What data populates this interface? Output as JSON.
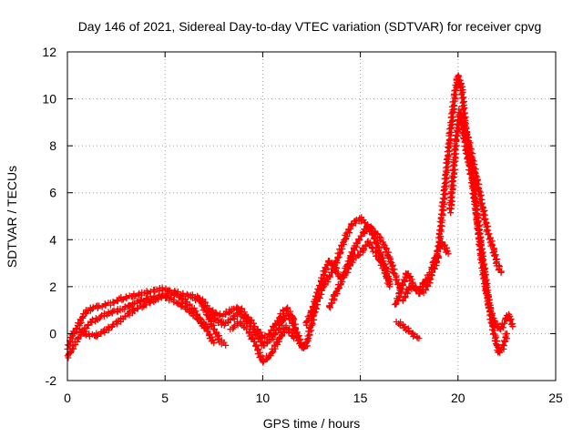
{
  "chart_data": {
    "type": "scatter",
    "title": "Day 146 of 2021, Sidereal Day-to-day VTEC variation (SDTVAR) for receiver cpvg",
    "xlabel": "GPS time / hours",
    "ylabel": "SDTVAR / TECUs",
    "xlim": [
      0,
      25
    ],
    "ylim": [
      -2,
      12
    ],
    "xticks": [
      "0",
      "5",
      "10",
      "15",
      "20",
      "25"
    ],
    "yticks": [
      "-2",
      "0",
      "2",
      "4",
      "6",
      "8",
      "10",
      "12"
    ],
    "grid": true,
    "marker": "+",
    "series": [
      {
        "name": "SDTVAR",
        "color": "#ff0000",
        "tracks": [
          {
            "x": [
              0.0,
              0.3,
              0.6,
              0.9,
              1.3,
              1.8,
              2.3,
              2.8,
              3.3,
              3.8,
              4.3,
              4.8,
              5.3,
              5.8,
              6.3,
              6.8,
              7.1,
              7.4,
              7.8,
              8.1
            ],
            "y": [
              -0.6,
              0.0,
              0.4,
              0.9,
              1.1,
              1.2,
              1.3,
              1.5,
              1.6,
              1.7,
              1.8,
              1.9,
              1.8,
              1.7,
              1.6,
              1.4,
              0.9,
              0.4,
              -0.3,
              -0.5
            ]
          },
          {
            "x": [
              0.0,
              0.4,
              0.8,
              1.2,
              1.7,
              2.2,
              2.7,
              3.2,
              3.7,
              4.2,
              4.7,
              5.2,
              5.7,
              6.2,
              6.7,
              7.1,
              7.5
            ],
            "y": [
              -1.0,
              -0.4,
              0.1,
              0.5,
              0.7,
              0.9,
              1.0,
              1.2,
              1.4,
              1.5,
              1.6,
              1.5,
              1.3,
              1.0,
              0.6,
              0.2,
              -0.4
            ]
          },
          {
            "x": [
              0.4,
              0.9,
              1.4,
              1.9,
              2.4,
              2.9,
              3.4,
              3.9,
              4.4,
              4.9,
              5.4,
              5.9,
              6.4,
              6.8,
              7.2
            ],
            "y": [
              0.2,
              0.0,
              -0.1,
              0.1,
              0.4,
              0.7,
              1.0,
              1.2,
              1.4,
              1.6,
              1.7,
              1.5,
              1.1,
              0.6,
              0.2
            ]
          },
          {
            "x": [
              6.4,
              6.8,
              7.2,
              7.6,
              8.0,
              8.4,
              8.8,
              9.2,
              9.6,
              10.0,
              10.4,
              10.8,
              11.2,
              11.6
            ],
            "y": [
              1.6,
              1.5,
              1.1,
              0.8,
              0.8,
              1.0,
              1.1,
              0.7,
              0.3,
              -0.2,
              0.0,
              0.6,
              1.1,
              0.6
            ]
          },
          {
            "x": [
              7.2,
              7.6,
              8.0,
              8.4,
              8.8,
              9.2,
              9.6,
              10.0,
              10.4,
              10.8,
              11.2,
              11.6,
              12.0
            ],
            "y": [
              0.9,
              0.6,
              0.4,
              0.6,
              0.9,
              0.5,
              0.1,
              -0.5,
              -0.3,
              0.2,
              0.8,
              0.4,
              -0.6
            ]
          },
          {
            "x": [
              8.4,
              8.8,
              9.2,
              9.6,
              10.0,
              10.4,
              10.8,
              11.2,
              11.6
            ],
            "y": [
              0.2,
              0.5,
              0.2,
              -0.4,
              -1.2,
              -0.9,
              -0.3,
              0.3,
              -0.2
            ]
          },
          {
            "x": [
              11.6,
              11.9,
              12.2,
              12.5,
              12.8,
              13.1,
              13.4,
              13.7,
              14.0,
              14.3,
              14.6,
              15.0,
              15.4,
              15.8,
              16.2,
              16.5
            ],
            "y": [
              0.2,
              -0.4,
              -0.6,
              0.4,
              1.4,
              2.0,
              2.4,
              2.9,
              3.6,
              4.2,
              4.7,
              4.9,
              4.6,
              3.9,
              3.0,
              2.2
            ]
          },
          {
            "x": [
              12.2,
              12.5,
              12.8,
              13.1,
              13.4,
              13.7,
              14.0,
              14.3,
              14.6,
              15.0,
              15.4,
              15.8,
              16.2,
              16.5
            ],
            "y": [
              0.4,
              0.9,
              1.7,
              2.5,
              3.1,
              2.8,
              2.3,
              2.6,
              3.2,
              3.4,
              3.9,
              3.4,
              2.8,
              2.0
            ]
          },
          {
            "x": [
              13.4,
              13.7,
              14.0,
              14.3,
              14.6,
              15.0,
              15.4,
              15.8,
              16.2,
              16.5,
              16.8,
              17.1
            ],
            "y": [
              1.1,
              1.6,
              2.2,
              2.8,
              3.5,
              4.1,
              4.6,
              4.3,
              3.8,
              3.2,
              2.4,
              1.8
            ]
          },
          {
            "x": [
              16.8,
              17.1,
              17.4,
              17.7,
              18.0,
              18.3,
              18.6,
              18.9,
              19.2,
              19.5
            ],
            "y": [
              1.2,
              1.9,
              2.6,
              2.1,
              1.8,
              2.2,
              2.6,
              3.4,
              3.9,
              3.4
            ]
          },
          {
            "x": [
              17.2,
              17.5,
              17.8,
              18.1,
              18.4,
              18.7,
              19.0
            ],
            "y": [
              1.4,
              2.0,
              1.9,
              1.7,
              2.0,
              2.6,
              3.3
            ]
          },
          {
            "x": [
              16.9,
              17.2,
              17.5,
              17.8,
              18.0
            ],
            "y": [
              0.5,
              0.3,
              0.1,
              -0.1,
              -0.2
            ]
          },
          {
            "x": [
              19.0,
              19.3,
              19.6,
              19.8,
              20.0,
              20.2,
              20.4,
              20.6,
              20.8,
              21.0,
              21.2,
              21.4,
              21.6,
              21.8,
              22.0,
              22.2,
              22.4,
              22.6,
              22.8
            ],
            "y": [
              3.6,
              6.0,
              8.5,
              10.0,
              11.0,
              10.4,
              8.6,
              7.6,
              6.4,
              4.8,
              3.2,
              2.0,
              1.2,
              0.6,
              0.3,
              0.2,
              0.6,
              0.8,
              0.3
            ]
          },
          {
            "x": [
              19.6,
              19.9,
              20.1,
              20.3,
              20.5,
              20.7,
              20.9,
              21.1,
              21.3,
              21.5,
              21.7,
              21.9,
              22.1,
              22.3,
              22.5
            ],
            "y": [
              5.2,
              8.2,
              9.5,
              8.4,
              7.5,
              6.6,
              5.4,
              4.2,
              3.0,
              1.8,
              0.6,
              -0.2,
              -0.8,
              -0.6,
              0.0
            ]
          },
          {
            "x": [
              20.3,
              20.6,
              20.9,
              21.2,
              21.5,
              21.8,
              22.0,
              22.2
            ],
            "y": [
              9.0,
              8.0,
              6.8,
              5.6,
              4.4,
              3.6,
              3.0,
              2.6
            ]
          }
        ]
      }
    ]
  }
}
